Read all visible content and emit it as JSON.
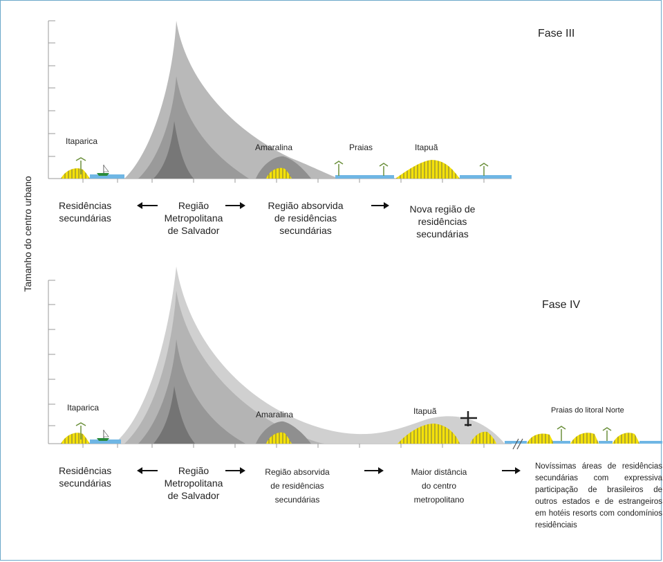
{
  "y_axis_label": "Tamanho do centro urbano",
  "phase3": {
    "title": "Fase III",
    "place_labels": {
      "itaparica": "Itaparica",
      "amaralina": "Amaralina",
      "praias": "Praias",
      "itapua": "Itapuã"
    },
    "captions": {
      "residencias": [
        "Residências",
        "secundárias"
      ],
      "regiao": [
        "Região",
        "Metropolitana",
        "de Salvador"
      ],
      "absorvida": [
        "Região absorvida",
        "de residências",
        "secundárias"
      ],
      "nova": [
        "Nova região de",
        "residências",
        "secundárias"
      ]
    }
  },
  "phase4": {
    "title": "Fase IV",
    "place_labels": {
      "itaparica": "Itaparica",
      "amaralina": "Amaralina",
      "itapua": "Itapuã",
      "praias_norte": "Praias do litoral Norte"
    },
    "captions": {
      "residencias": [
        "Residências",
        "secundárias"
      ],
      "regiao": [
        "Região",
        "Metropolitana",
        "de Salvador"
      ],
      "absorvida": [
        "Região absorvida",
        "de residências",
        "secundárias"
      ],
      "distancia": [
        "Maior distância",
        "do centro",
        "metropolitano"
      ],
      "novissimas": "Novíssimas áreas de residências secundárias com expressiva participação de brasileiros de outros estados e de estrangeiros em hotéis resorts com condomínios residênciais"
    }
  },
  "colors": {
    "light_gray": "#c9c9c9",
    "mid_gray": "#a9a9a9",
    "dark_gray": "#8a8a8a",
    "darkest_gray": "#6f6f6f",
    "yellow": "#f4e10a",
    "water": "#6fb6e4"
  }
}
